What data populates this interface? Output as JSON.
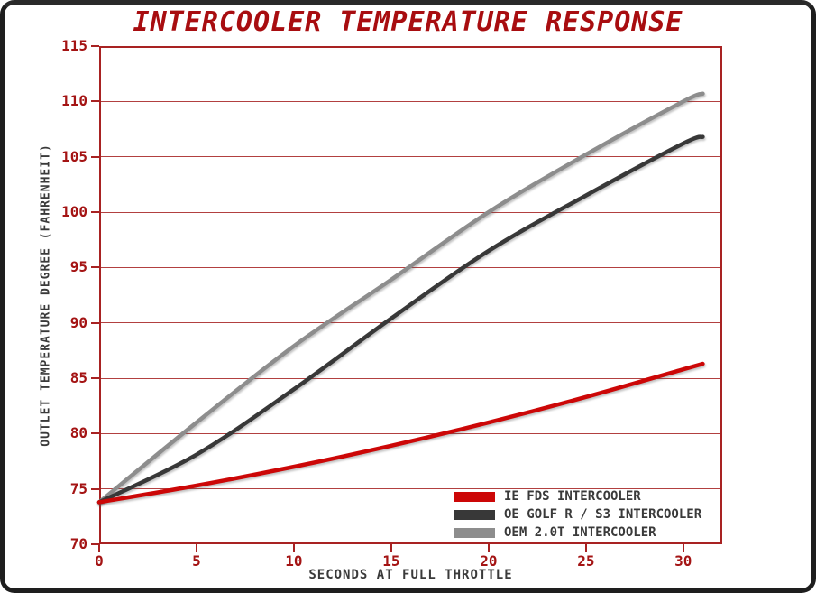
{
  "chart_data": {
    "type": "line",
    "title": "INTERCOOLER TEMPERATURE RESPONSE",
    "xlabel": "SECONDS AT FULL THROTTLE",
    "ylabel": "OUTLET TEMPERATURE DEGREE (FAHRENHEIT)",
    "xlim": [
      0,
      32
    ],
    "ylim": [
      70,
      115
    ],
    "x_ticks": [
      0,
      5,
      10,
      15,
      20,
      25,
      30
    ],
    "y_ticks": [
      70,
      75,
      80,
      85,
      90,
      95,
      100,
      105,
      110,
      115
    ],
    "grid": "horizontal",
    "legend_position": "inside-bottom-right",
    "x": [
      0,
      5,
      10,
      15,
      20,
      25,
      30,
      31
    ],
    "series": [
      {
        "name": "IE FDS INTERCOOLER",
        "color": "#cc0707",
        "values": [
          73.8,
          75.3,
          77.0,
          78.9,
          81.0,
          83.3,
          85.8,
          86.3
        ]
      },
      {
        "name": "OE GOLF R / S3 INTERCOOLER",
        "color": "#383838",
        "values": [
          73.8,
          78.1,
          84.0,
          90.4,
          96.5,
          101.5,
          106.2,
          106.8
        ]
      },
      {
        "name": "OEM 2.0T INTERCOOLER",
        "color": "#8d8d8d",
        "values": [
          73.8,
          81.0,
          87.9,
          93.9,
          100.0,
          105.2,
          110.0,
          110.7
        ]
      }
    ],
    "colors": {
      "title": "#a80d10",
      "tick_label": "#a41414",
      "grid": "#b24040",
      "axis": "#a82222",
      "axis_title": "#3a3a3a"
    },
    "line_width": 4.5
  }
}
